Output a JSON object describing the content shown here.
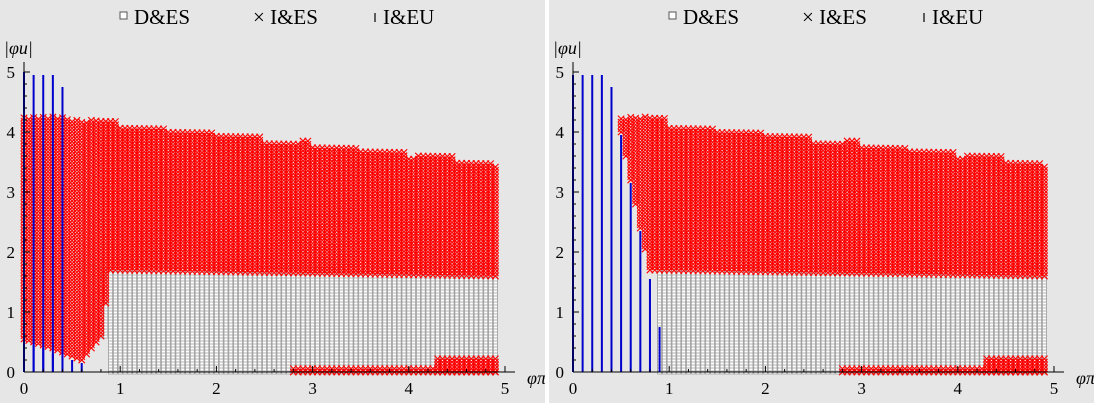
{
  "chart_data": [
    {
      "type": "scatter",
      "title": "",
      "xlabel": "φπ",
      "ylabel": "|φu|",
      "xlim": [
        0,
        5
      ],
      "ylim": [
        0,
        5
      ],
      "x_ticks": [
        "0",
        "1",
        "2",
        "3",
        "4",
        "5"
      ],
      "y_ticks": [
        "0",
        "1",
        "2",
        "3",
        "4",
        "5"
      ],
      "legend": {
        "placement": "top",
        "entries": [
          "D&ES",
          "× I&ES",
          "I&EU"
        ]
      },
      "series": [
        {
          "name": "D&ES",
          "marker": "square",
          "color": "#a0a0a0",
          "regions": [
            {
              "x": [
                0.9,
                4.9
              ],
              "y": [
                0,
                1.7
              ]
            },
            {
              "x": [
                0.8,
                0.9
              ],
              "y": [
                0.6,
                1.7
              ]
            }
          ]
        },
        {
          "name": "I&ES",
          "marker": "cross",
          "color": "#ff0000",
          "upper_boundary": [
            [
              0,
              4.25
            ],
            [
              0.5,
              4.2
            ],
            [
              1,
              4.1
            ],
            [
              1.5,
              4.0
            ],
            [
              2,
              3.95
            ],
            [
              2.5,
              3.85
            ],
            [
              3,
              3.75
            ],
            [
              3.5,
              3.7
            ],
            [
              4,
              3.6
            ],
            [
              4.5,
              3.5
            ],
            [
              4.9,
              3.45
            ]
          ],
          "lower_boundary": [
            [
              0,
              0.55
            ],
            [
              0.3,
              0.4
            ],
            [
              0.6,
              0.2
            ],
            [
              0.8,
              0.6
            ],
            [
              0.9,
              1.7
            ],
            [
              4.9,
              1.6
            ]
          ],
          "extra_bands": [
            {
              "x": [
                2.8,
                4.9
              ],
              "y": [
                0,
                0.1
              ]
            },
            {
              "x": [
                4.3,
                4.9
              ],
              "y": [
                0,
                0.25
              ]
            }
          ]
        },
        {
          "name": "I&EU",
          "marker": "vline",
          "color": "#0000cc",
          "stems": [
            [
              0.0,
              5.0
            ],
            [
              0.1,
              4.95
            ],
            [
              0.2,
              4.95
            ],
            [
              0.3,
              4.95
            ],
            [
              0.4,
              4.75
            ]
          ],
          "low_stems": [
            [
              0.0,
              0.55
            ],
            [
              0.1,
              0.45
            ],
            [
              0.2,
              0.4
            ],
            [
              0.3,
              0.3
            ],
            [
              0.4,
              0.25
            ],
            [
              0.5,
              0.2
            ],
            [
              0.6,
              0.15
            ]
          ]
        }
      ]
    },
    {
      "type": "scatter",
      "title": "",
      "xlabel": "φπ",
      "ylabel": "|φu|",
      "xlim": [
        0,
        5
      ],
      "ylim": [
        0,
        5
      ],
      "x_ticks": [
        "0",
        "1",
        "2",
        "3",
        "4",
        "5"
      ],
      "y_ticks": [
        "0",
        "1",
        "2",
        "3",
        "4",
        "5"
      ],
      "legend": {
        "placement": "top",
        "entries": [
          "D&ES",
          "× I&ES",
          "I&EU"
        ]
      },
      "series": [
        {
          "name": "D&ES",
          "marker": "square",
          "color": "#a0a0a0",
          "regions": [
            {
              "x": [
                0.9,
                4.9
              ],
              "y": [
                0,
                1.7
              ]
            }
          ]
        },
        {
          "name": "I&ES",
          "marker": "cross",
          "color": "#ff0000",
          "upper_boundary": [
            [
              0.5,
              4.25
            ],
            [
              1,
              4.1
            ],
            [
              1.5,
              4.0
            ],
            [
              2,
              3.95
            ],
            [
              2.5,
              3.85
            ],
            [
              3,
              3.75
            ],
            [
              3.5,
              3.7
            ],
            [
              4,
              3.6
            ],
            [
              4.5,
              3.5
            ],
            [
              4.9,
              3.45
            ]
          ],
          "lower_boundary": [
            [
              0.5,
              4.0
            ],
            [
              0.6,
              3.2
            ],
            [
              0.7,
              2.4
            ],
            [
              0.8,
              1.7
            ],
            [
              4.9,
              1.6
            ]
          ],
          "extra_bands": [
            {
              "x": [
                2.8,
                4.9
              ],
              "y": [
                0,
                0.1
              ]
            },
            {
              "x": [
                4.3,
                4.9
              ],
              "y": [
                0,
                0.25
              ]
            }
          ]
        },
        {
          "name": "I&EU",
          "marker": "vline",
          "color": "#0000cc",
          "stems": [
            [
              0.0,
              4.95
            ],
            [
              0.1,
              4.95
            ],
            [
              0.2,
              4.95
            ],
            [
              0.3,
              4.95
            ],
            [
              0.4,
              4.75
            ],
            [
              0.5,
              3.95
            ],
            [
              0.6,
              3.15
            ],
            [
              0.7,
              2.35
            ],
            [
              0.8,
              1.55
            ],
            [
              0.9,
              0.75
            ]
          ]
        }
      ]
    }
  ]
}
